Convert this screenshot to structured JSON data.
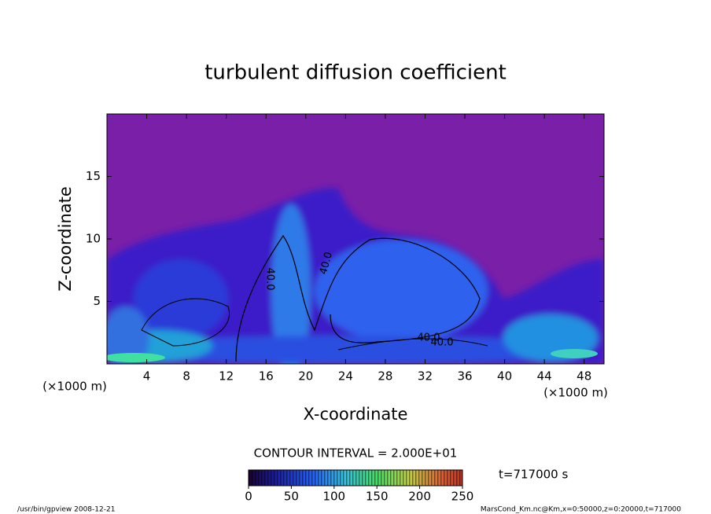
{
  "chart_data": {
    "type": "heatmap",
    "title": "turbulent diffusion coefficient",
    "xlabel": "X-coordinate",
    "ylabel": "Z-coordinate",
    "x_unit": "(×1000 m)",
    "y_unit": "(×1000 m)",
    "xlim": [
      0,
      50
    ],
    "ylim": [
      0,
      20
    ],
    "xticks": [
      4,
      8,
      12,
      16,
      20,
      24,
      28,
      32,
      36,
      40,
      44,
      48
    ],
    "yticks": [
      5,
      10,
      15
    ],
    "contour_interval": "CONTOUR INTERVAL = 2.000E+01",
    "contour_labels": [
      {
        "value": 40,
        "label": "40.0"
      },
      {
        "value": 40,
        "label": "40.0"
      },
      {
        "value": 40,
        "label": "40.0"
      },
      {
        "value": 40,
        "label": "40.0"
      }
    ],
    "clim": [
      0,
      250
    ],
    "cticks": [
      0,
      50,
      100,
      150,
      200,
      250
    ],
    "time_label": "t=717000 s",
    "footer_left": "/usr/bin/gpview   2008-12-21",
    "footer_right": "MarsCond_Km.nc@Km,x=0:50000,z=0:20000,t=717000"
  }
}
